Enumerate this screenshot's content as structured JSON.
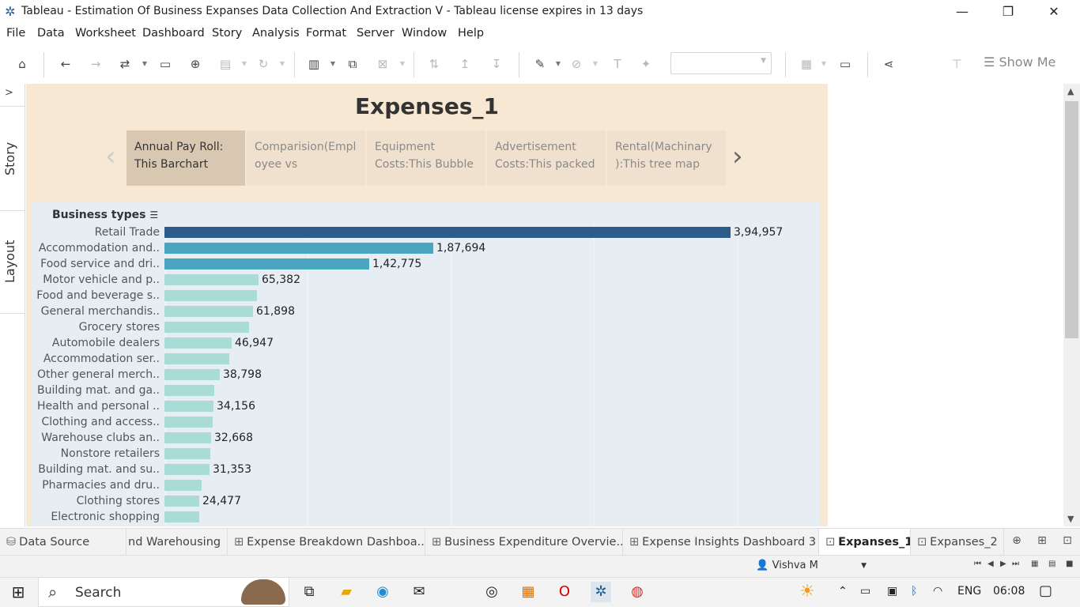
{
  "window": {
    "title": "Tableau - Estimation Of Business Expanses Data Collection And Extraction V - Tableau license expires in 13 days"
  },
  "menu": [
    "File",
    "Data",
    "Worksheet",
    "Dashboard",
    "Story",
    "Analysis",
    "Format",
    "Server",
    "Window",
    "Help"
  ],
  "toolbar": {
    "show_me": "Show Me"
  },
  "side": {
    "story": "Story",
    "layout": "Layout"
  },
  "story": {
    "title": "Expenses_1",
    "points": [
      {
        "line1": "Annual Pay Roll:",
        "line2": "This Barchart"
      },
      {
        "line1": "Comparision(Empl",
        "line2": "oyee vs"
      },
      {
        "line1": "Equipment",
        "line2": "Costs:This Bubble"
      },
      {
        "line1": "Advertisement",
        "line2": "Costs:This packed"
      },
      {
        "line1": "Rental(Machinary",
        "line2": "):This tree map"
      }
    ]
  },
  "chart_data": {
    "type": "bar",
    "orientation": "horizontal",
    "row_header": "Business types",
    "categories": [
      "Retail Trade",
      "Accommodation and..",
      "Food service and dri..",
      "Motor vehicle and p..",
      "Food and beverage s..",
      "General merchandis..",
      "Grocery stores",
      "Automobile dealers",
      "Accommodation ser..",
      "Other general merch..",
      "Building mat. and ga..",
      "Health and personal ..",
      "Clothing and access..",
      "Warehouse clubs an..",
      "Nonstore retailers",
      "Building mat. and su..",
      "Pharmacies and dru..",
      "Clothing stores",
      "Electronic shopping"
    ],
    "values": [
      394957,
      187694,
      142775,
      65382,
      64500,
      61898,
      59000,
      46947,
      45000,
      38798,
      35000,
      34156,
      33500,
      32668,
      31800,
      31353,
      26000,
      24477,
      24000
    ],
    "labels": [
      "3,94,957",
      "1,87,694",
      "1,42,775",
      "65,382",
      "",
      "61,898",
      "",
      "46,947",
      "",
      "38,798",
      "",
      "34,156",
      "",
      "32,668",
      "",
      "31,353",
      "",
      "24,477",
      ""
    ],
    "colors": {
      "dark": "#2c5d8a",
      "mid": "#4ba5be",
      "light": "#a9dcd6"
    }
  },
  "tabs": {
    "items": [
      {
        "icon": "datasource",
        "label": "Data Source"
      },
      {
        "icon": "none",
        "label": "nd Warehousing"
      },
      {
        "icon": "dashboard",
        "label": "Expense Breakdown Dashboa..."
      },
      {
        "icon": "dashboard",
        "label": "Business Expenditure Overvie..."
      },
      {
        "icon": "dashboard",
        "label": "Expense Insights Dashboard 3"
      },
      {
        "icon": "story",
        "label": "Expanses_1"
      },
      {
        "icon": "story",
        "label": "Expanses_2"
      }
    ]
  },
  "status": {
    "user": "Vishva M"
  },
  "taskbar": {
    "search": "Search",
    "lang": "ENG",
    "time": "06:08"
  }
}
